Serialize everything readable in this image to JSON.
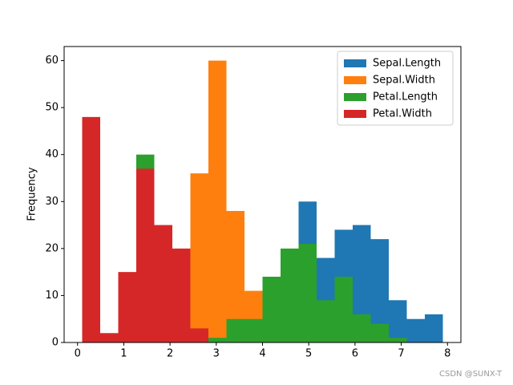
{
  "chart_data": {
    "type": "histogram",
    "y_label": "Frequency",
    "bins": [
      0.1,
      0.49,
      0.88,
      1.27,
      1.66,
      2.05,
      2.44,
      2.83,
      3.22,
      3.61,
      4.0,
      4.39,
      4.78,
      5.17,
      5.56,
      5.95,
      6.34,
      6.73,
      7.12,
      7.51,
      7.9
    ],
    "series": [
      {
        "name": "Sepal.Length",
        "color": "#1f77b4",
        "values": [
          0,
          0,
          0,
          0,
          0,
          0,
          0,
          0,
          0,
          0,
          1,
          10,
          30,
          18,
          24,
          25,
          22,
          9,
          5,
          6
        ]
      },
      {
        "name": "Sepal.Width",
        "color": "#ff7f0e",
        "values": [
          0,
          0,
          0,
          0,
          1,
          10,
          36,
          60,
          28,
          11,
          4,
          0,
          0,
          0,
          0,
          0,
          0,
          0,
          0,
          0
        ]
      },
      {
        "name": "Petal.Length",
        "color": "#2ca02c",
        "values": [
          0,
          0,
          4,
          40,
          6,
          0,
          0,
          1,
          5,
          5,
          14,
          20,
          21,
          9,
          14,
          6,
          4,
          1,
          0,
          0
        ]
      },
      {
        "name": "Petal.Width",
        "color": "#d62728",
        "values": [
          48,
          2,
          15,
          37,
          25,
          20,
          3,
          0,
          0,
          0,
          0,
          0,
          0,
          0,
          0,
          0,
          0,
          0,
          0,
          0
        ]
      }
    ],
    "xlim": [
      -0.29,
      8.29
    ],
    "ylim": [
      0,
      63
    ],
    "xticks": [
      0,
      1,
      2,
      3,
      4,
      5,
      6,
      7,
      8
    ],
    "yticks": [
      0,
      10,
      20,
      30,
      40,
      50,
      60
    ],
    "legend": "upper right",
    "watermark": "CSDN @SUNX-T"
  }
}
